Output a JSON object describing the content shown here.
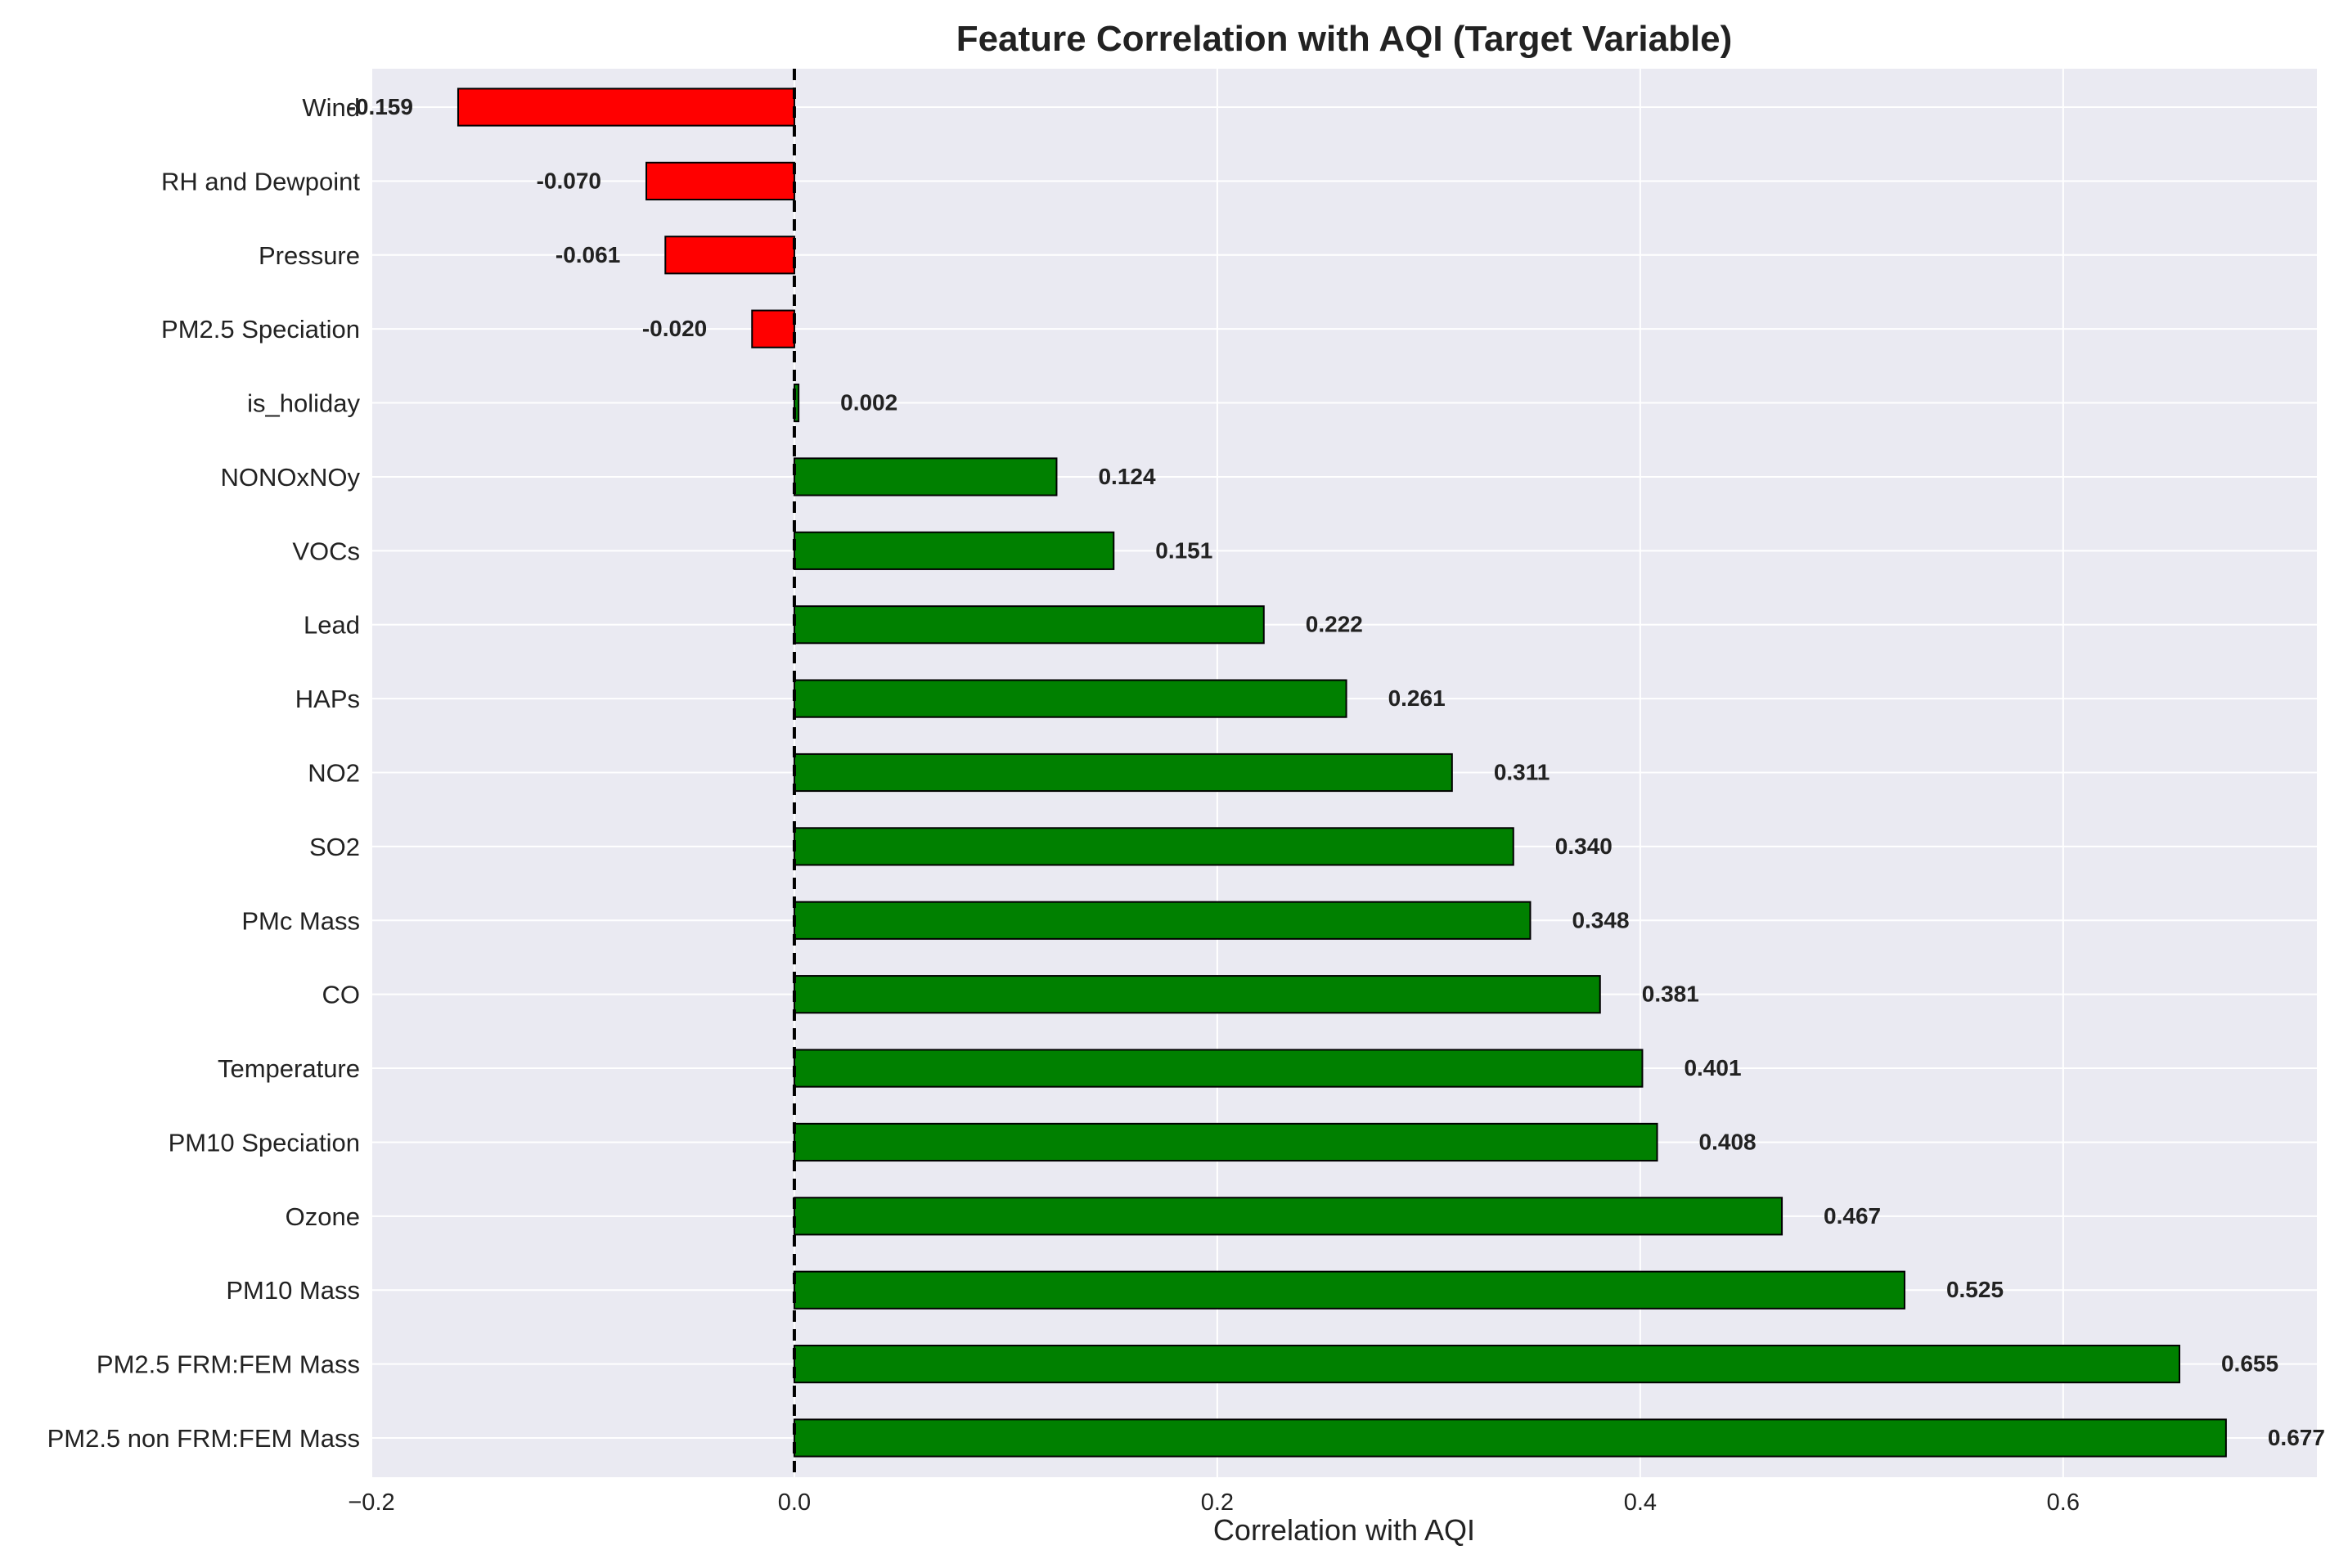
{
  "chart_data": {
    "type": "bar",
    "orientation": "horizontal",
    "title": "Feature Correlation with AQI (Target Variable)",
    "xlabel": "Correlation with AQI",
    "ylabel": "",
    "xlim": [
      -0.2,
      0.72
    ],
    "xticks": [
      -0.2,
      0.0,
      0.2,
      0.4,
      0.6
    ],
    "xtick_labels": [
      "−0.2",
      "0.0",
      "0.2",
      "0.4",
      "0.6"
    ],
    "grid": true,
    "reference_line": {
      "x": 0,
      "style": "dashed",
      "color": "#000000"
    },
    "colors": {
      "positive": "#008000",
      "negative": "#ff0000",
      "background": "#eaeaf2",
      "grid": "#ffffff",
      "edge": "#000000"
    },
    "categories": [
      "Wind",
      "RH and Dewpoint",
      "Pressure",
      "PM2.5 Speciation",
      "is_holiday",
      "NONOxNOy",
      "VOCs",
      "Lead",
      "HAPs",
      "NO2",
      "SO2",
      "PMc Mass",
      "CO",
      "Temperature",
      "PM10 Speciation",
      "Ozone",
      "PM10 Mass",
      "PM2.5 FRM:FEM Mass",
      "PM2.5 non FRM:FEM Mass"
    ],
    "values": [
      -0.159,
      -0.07,
      -0.061,
      -0.02,
      0.002,
      0.124,
      0.151,
      0.222,
      0.261,
      0.311,
      0.34,
      0.348,
      0.381,
      0.401,
      0.408,
      0.467,
      0.525,
      0.655,
      0.677
    ],
    "value_labels": [
      "-0.159",
      "-0.070",
      "-0.061",
      "-0.020",
      "0.002",
      "0.124",
      "0.151",
      "0.222",
      "0.261",
      "0.311",
      "0.340",
      "0.348",
      "0.381",
      "0.401",
      "0.408",
      "0.467",
      "0.525",
      "0.655",
      "0.677"
    ]
  }
}
